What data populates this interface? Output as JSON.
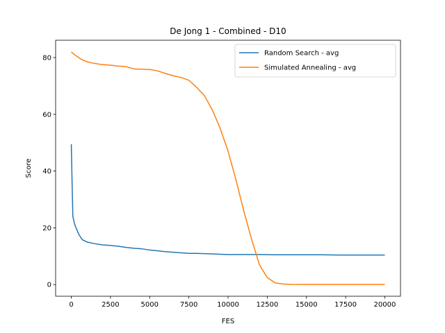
{
  "chart_data": {
    "type": "line",
    "title": "De Jong 1 - Combined - D10",
    "xlabel": "FES",
    "ylabel": "Score",
    "xlim": [
      -1000,
      21000
    ],
    "ylim": [
      -4.1,
      86.1
    ],
    "xticks": [
      0,
      2500,
      5000,
      7500,
      10000,
      12500,
      15000,
      17500,
      20000
    ],
    "xtick_labels": [
      "0",
      "2500",
      "5000",
      "7500",
      "10000",
      "12500",
      "15000",
      "17500",
      "20000"
    ],
    "yticks": [
      0,
      20,
      40,
      60,
      80
    ],
    "ytick_labels": [
      "0",
      "20",
      "40",
      "60",
      "80"
    ],
    "grid": false,
    "legend_position": "top-right",
    "series": [
      {
        "name": "Random Search - avg",
        "color": "#1f77b4",
        "x": [
          0,
          50,
          100,
          200,
          300,
          500,
          700,
          1000,
          1500,
          2000,
          2500,
          3000,
          3500,
          4000,
          4500,
          5000,
          5500,
          6000,
          6500,
          7000,
          7500,
          8000,
          8500,
          9000,
          9500,
          10000,
          11000,
          12000,
          13000,
          14000,
          15000,
          16000,
          17000,
          18000,
          19000,
          20000
        ],
        "y": [
          49.5,
          36.0,
          24.0,
          21.5,
          20.0,
          17.5,
          15.8,
          15.0,
          14.4,
          14.0,
          13.8,
          13.5,
          13.1,
          12.8,
          12.6,
          12.2,
          11.9,
          11.6,
          11.4,
          11.2,
          11.0,
          11.0,
          10.9,
          10.8,
          10.7,
          10.6,
          10.6,
          10.6,
          10.5,
          10.5,
          10.5,
          10.5,
          10.4,
          10.4,
          10.4,
          10.4
        ]
      },
      {
        "name": "Simulated Annealing - avg",
        "color": "#ff7f0e",
        "x": [
          0,
          200,
          400,
          600,
          800,
          1000,
          1500,
          2000,
          2500,
          3000,
          3500,
          4000,
          4500,
          5000,
          5500,
          6000,
          6500,
          7000,
          7500,
          8000,
          8500,
          9000,
          9500,
          10000,
          10500,
          11000,
          11500,
          12000,
          12500,
          13000,
          13500,
          14000,
          15000,
          16000,
          17000,
          18000,
          19000,
          20000
        ],
        "y": [
          82.0,
          81.0,
          80.3,
          79.5,
          79.0,
          78.5,
          77.9,
          77.5,
          77.3,
          77.0,
          76.8,
          76.0,
          75.9,
          75.8,
          75.3,
          74.4,
          73.6,
          73.0,
          72.0,
          69.5,
          66.5,
          61.5,
          55.0,
          47.0,
          37.0,
          26.0,
          16.0,
          7.0,
          2.5,
          0.6,
          0.2,
          0.1,
          0.05,
          0.05,
          0.05,
          0.05,
          0.05,
          0.05
        ]
      }
    ]
  }
}
